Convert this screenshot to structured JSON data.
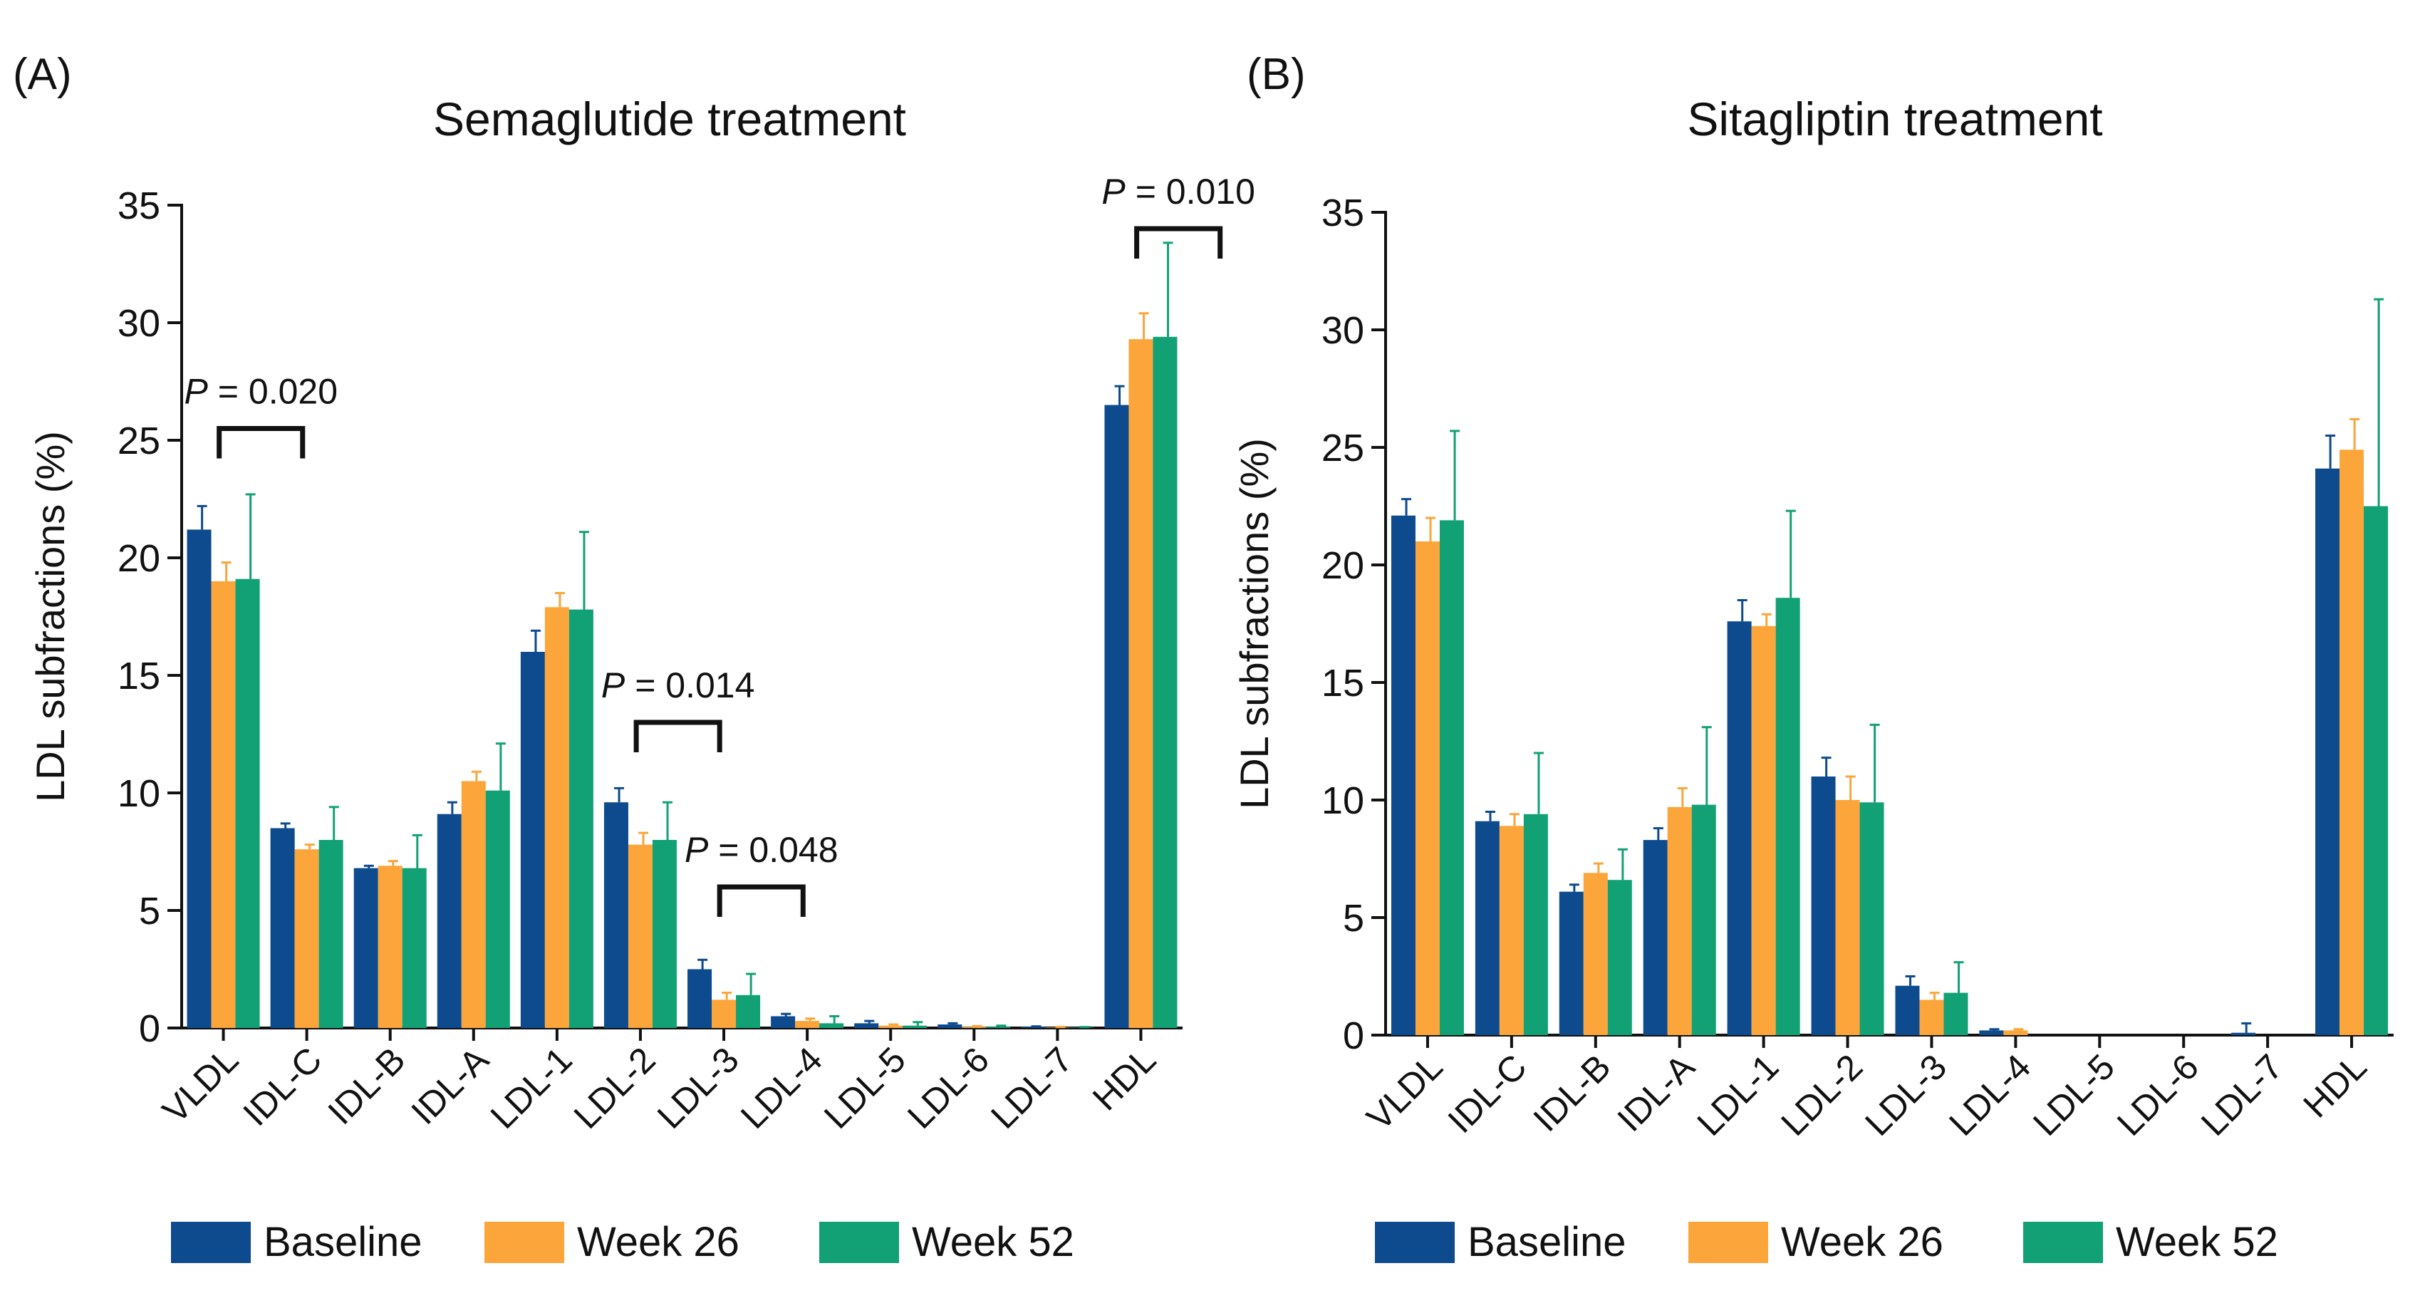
{
  "colors": {
    "baseline": "#0d4a8e",
    "week26": "#fba53a",
    "week52": "#12a075",
    "axis": "#111111"
  },
  "legend": [
    "Baseline",
    "Week 26",
    "Week 52"
  ],
  "chart_data": [
    {
      "type": "bar",
      "panel_label": "(A)",
      "title": "Semaglutide treatment",
      "ylabel": "LDL subfractions (%)",
      "xlabel": "",
      "ylim": [
        0,
        35
      ],
      "yticks": [
        "0",
        "5",
        "10",
        "15",
        "20",
        "25",
        "30",
        "35"
      ],
      "categories": [
        "VLDL",
        "IDL-C",
        "IDL-B",
        "IDL-A",
        "LDL-1",
        "LDL-2",
        "LDL-3",
        "LDL-4",
        "LDL-5",
        "LDL-6",
        "LDL-7",
        "HDL"
      ],
      "series": [
        {
          "name": "Baseline",
          "values": [
            21.2,
            8.5,
            6.8,
            9.1,
            16.0,
            9.6,
            2.5,
            0.5,
            0.2,
            0.15,
            0.05,
            26.5
          ],
          "errors": [
            1.0,
            0.2,
            0.1,
            0.5,
            0.9,
            0.6,
            0.4,
            0.1,
            0.1,
            0.05,
            0.02,
            0.8
          ]
        },
        {
          "name": "Week 26",
          "values": [
            19.0,
            7.6,
            6.9,
            10.5,
            17.9,
            7.8,
            1.2,
            0.3,
            0.1,
            0.05,
            0.02,
            29.3
          ],
          "errors": [
            0.8,
            0.2,
            0.2,
            0.4,
            0.6,
            0.5,
            0.3,
            0.1,
            0.05,
            0.03,
            0.02,
            1.1
          ]
        },
        {
          "name": "Week 52",
          "values": [
            19.1,
            8.0,
            6.8,
            10.1,
            17.8,
            8.0,
            1.4,
            0.2,
            0.1,
            0.05,
            0.02,
            29.4
          ],
          "errors": [
            3.6,
            1.4,
            1.4,
            2.0,
            3.3,
            1.6,
            0.9,
            0.3,
            0.15,
            0.05,
            0.02,
            4.0
          ]
        }
      ],
      "annotations": [
        {
          "p_label": "P",
          "p_value": "= 0.020",
          "from": 0,
          "to": 1,
          "y": 25.5
        },
        {
          "p_label": "P",
          "p_value": "= 0.014",
          "from": 5,
          "to": 6,
          "y": 13.0
        },
        {
          "p_label": "P",
          "p_value": "= 0.048",
          "from": 6,
          "to": 7,
          "y": 6.0
        },
        {
          "p_label": "P",
          "p_value": "= 0.010",
          "from": 11,
          "to": 12,
          "y": 34.0
        }
      ]
    },
    {
      "type": "bar",
      "panel_label": "(B)",
      "title": "Sitagliptin treatment",
      "ylabel": "LDL subfractions (%)",
      "xlabel": "",
      "ylim": [
        0,
        35
      ],
      "yticks": [
        "0",
        "5",
        "10",
        "15",
        "20",
        "25",
        "30",
        "35"
      ],
      "categories": [
        "VLDL",
        "IDL-C",
        "IDL-B",
        "IDL-A",
        "LDL-1",
        "LDL-2",
        "LDL-3",
        "LDL-4",
        "LDL-5",
        "LDL-6",
        "LDL-7",
        "HDL"
      ],
      "series": [
        {
          "name": "Baseline",
          "values": [
            22.1,
            9.1,
            6.1,
            8.3,
            17.6,
            11.0,
            2.1,
            0.2,
            0.0,
            0.0,
            0.1,
            24.1
          ],
          "errors": [
            0.7,
            0.4,
            0.3,
            0.5,
            0.9,
            0.8,
            0.4,
            0.05,
            0.0,
            0.0,
            0.4,
            1.4
          ]
        },
        {
          "name": "Week 26",
          "values": [
            21.0,
            8.9,
            6.9,
            9.7,
            17.4,
            10.0,
            1.5,
            0.2,
            0.0,
            0.0,
            0.0,
            24.9
          ],
          "errors": [
            1.0,
            0.5,
            0.4,
            0.8,
            0.5,
            1.0,
            0.3,
            0.05,
            0.0,
            0.0,
            0.0,
            1.3
          ]
        },
        {
          "name": "Week 52",
          "values": [
            21.9,
            9.4,
            6.6,
            9.8,
            18.6,
            9.9,
            1.8,
            0.0,
            0.0,
            0.0,
            0.0,
            22.5
          ],
          "errors": [
            3.8,
            2.6,
            1.3,
            3.3,
            3.7,
            3.3,
            1.3,
            0.0,
            0.0,
            0.0,
            0.0,
            8.8
          ]
        }
      ]
    }
  ]
}
